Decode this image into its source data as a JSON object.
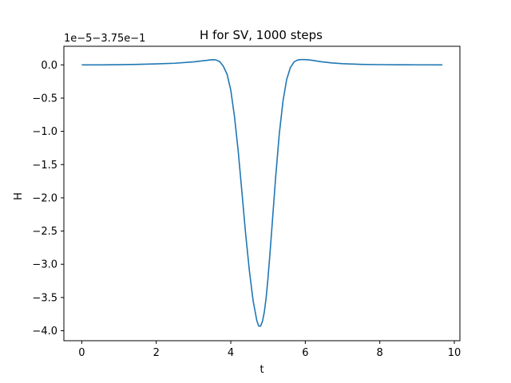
{
  "chart_data": {
    "type": "line",
    "title": "H for SV, 1000 steps",
    "xlabel": "t",
    "ylabel": "H",
    "offset_text": "1e−5−3.75e−1",
    "xlim": [
      -0.48,
      10.15
    ],
    "ylim": [
      -4.15,
      0.28
    ],
    "grid": false,
    "xticks": [
      0,
      2,
      4,
      6,
      8,
      10
    ],
    "xtick_labels": [
      "0",
      "2",
      "4",
      "6",
      "8",
      "10"
    ],
    "yticks": [
      0.0,
      -0.5,
      -1.0,
      -1.5,
      -2.0,
      -2.5,
      -3.0,
      -3.5,
      -4.0
    ],
    "ytick_labels": [
      "0.0",
      "−0.5",
      "−1.0",
      "−1.5",
      "−2.0",
      "−2.5",
      "−3.0",
      "−3.5",
      "−4.0"
    ],
    "series": [
      {
        "color": "#1f77b4",
        "x": [
          0.0,
          0.5,
          1.0,
          1.5,
          2.0,
          2.5,
          3.0,
          3.3,
          3.5,
          3.6,
          3.7,
          3.8,
          3.9,
          4.0,
          4.1,
          4.2,
          4.3,
          4.4,
          4.5,
          4.6,
          4.7,
          4.75,
          4.8,
          4.85,
          4.9,
          4.95,
          5.0,
          5.05,
          5.1,
          5.2,
          5.3,
          5.4,
          5.5,
          5.6,
          5.7,
          5.8,
          5.9,
          6.0,
          6.1,
          6.2,
          6.4,
          6.7,
          7.0,
          7.5,
          8.0,
          8.5,
          9.0,
          9.68
        ],
        "y": [
          0.0,
          0.0,
          0.003,
          0.008,
          0.015,
          0.025,
          0.045,
          0.065,
          0.078,
          0.075,
          0.05,
          -0.02,
          -0.14,
          -0.38,
          -0.78,
          -1.3,
          -1.92,
          -2.55,
          -3.1,
          -3.55,
          -3.85,
          -3.93,
          -3.93,
          -3.86,
          -3.72,
          -3.5,
          -3.2,
          -2.85,
          -2.48,
          -1.72,
          -1.05,
          -0.55,
          -0.22,
          -0.04,
          0.045,
          0.075,
          0.08,
          0.08,
          0.075,
          0.068,
          0.05,
          0.03,
          0.018,
          0.008,
          0.004,
          0.002,
          0.001,
          0.0
        ]
      }
    ]
  }
}
